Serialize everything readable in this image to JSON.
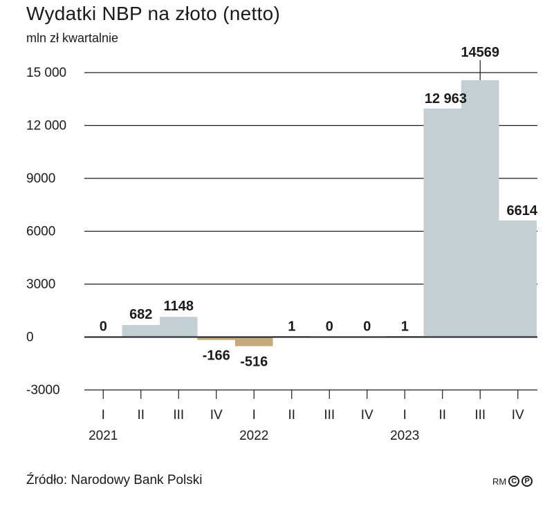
{
  "chart_data": {
    "type": "bar",
    "title": "Wydatki NBP na złoto (netto)",
    "subtitle": "mln zł kwartalnie",
    "categories": [
      "I",
      "II",
      "III",
      "IV",
      "I",
      "II",
      "III",
      "IV",
      "I",
      "II",
      "III",
      "IV"
    ],
    "values": [
      0,
      682,
      1148,
      -166,
      -516,
      1,
      0,
      0,
      1,
      12963,
      14569,
      6614
    ],
    "value_labels": [
      "0",
      "682",
      "1148",
      "-166",
      "-516",
      "1",
      "0",
      "0",
      "1",
      "12 963",
      "14569",
      "6614"
    ],
    "years": [
      {
        "label": "2021",
        "quarter_index": 0
      },
      {
        "label": "2022",
        "quarter_index": 4
      },
      {
        "label": "2023",
        "quarter_index": 8
      }
    ],
    "y_ticks": [
      -3000,
      0,
      3000,
      6000,
      9000,
      12000,
      15000
    ],
    "y_tick_labels": [
      "-3000",
      "0",
      "3000",
      "6000",
      "9000",
      "12 000",
      "15 000"
    ],
    "ylim": [
      -3000,
      15000
    ],
    "grid": true,
    "colors": {
      "positive": "#c4cfd4",
      "negative": "#c4aa7a",
      "grid": "#1a1a1a",
      "text": "#1a1a1a"
    }
  },
  "source": "Źródło: Narodowy Bank Polski",
  "credit": {
    "text": "RM",
    "marks": [
      "C",
      "P"
    ]
  }
}
